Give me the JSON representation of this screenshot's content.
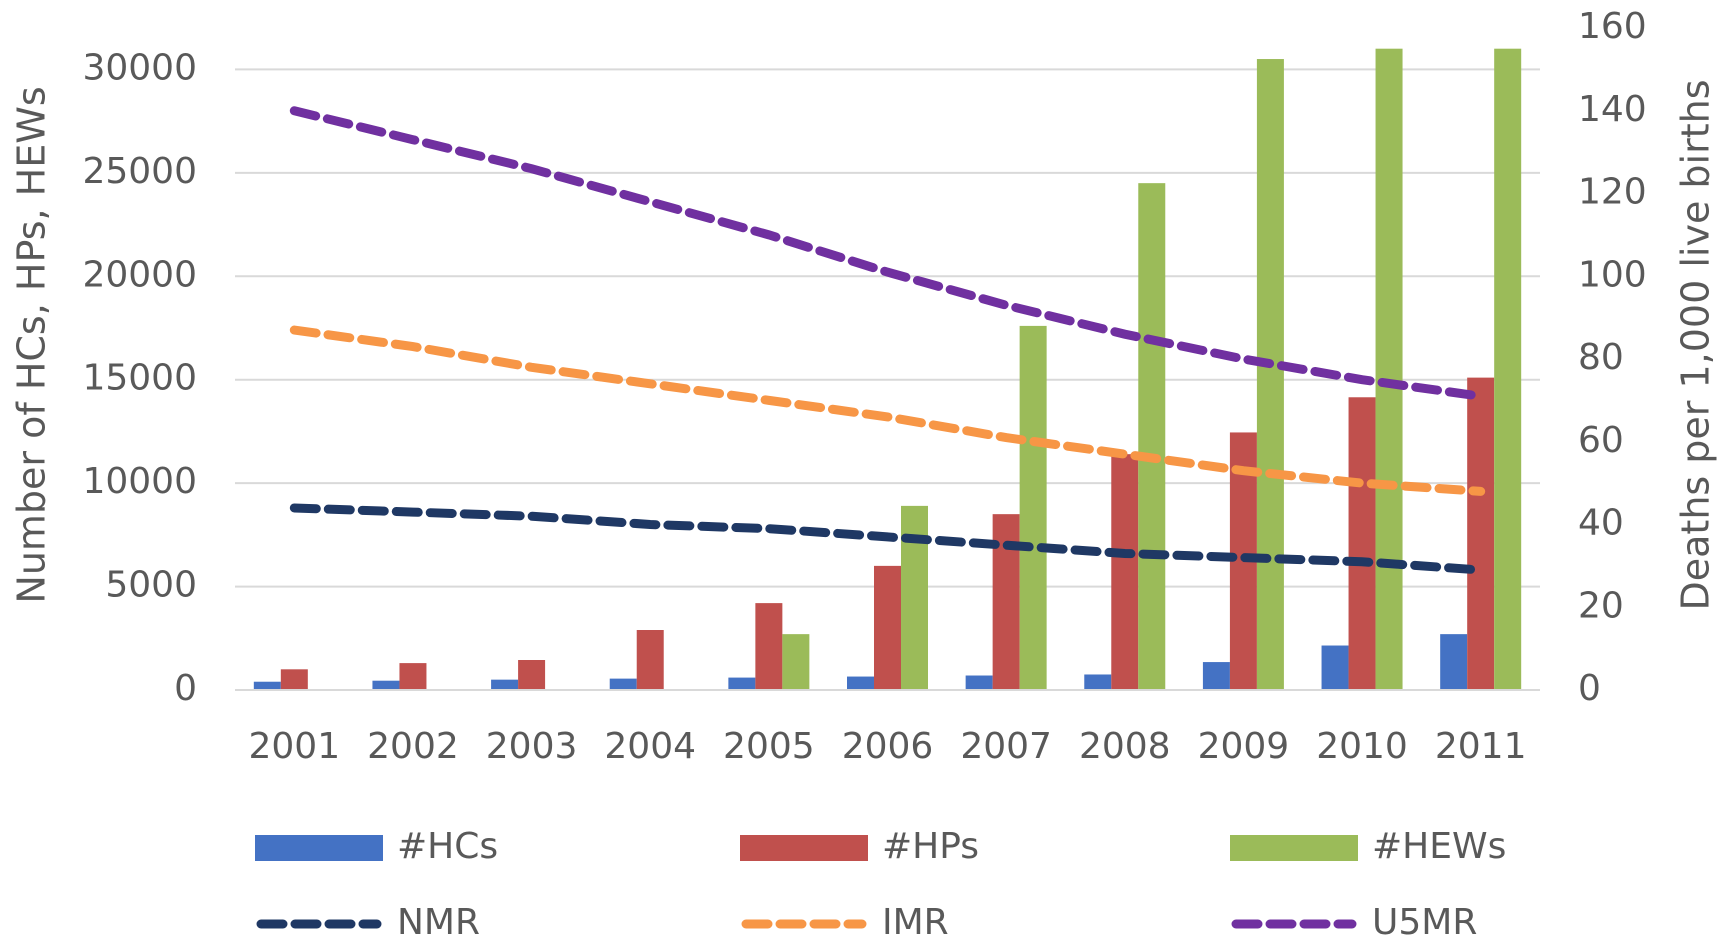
{
  "chart_data": {
    "type": "bar",
    "categories": [
      "2001",
      "2002",
      "2003",
      "2004",
      "2005",
      "2006",
      "2007",
      "2008",
      "2009",
      "2010",
      "2011"
    ],
    "ylabel": "Number of HCs, HPs, HEWs",
    "y2label": "Deaths per 1,000 live births",
    "ylim": [
      0,
      32000
    ],
    "yticks": [
      0,
      5000,
      10000,
      15000,
      20000,
      25000,
      30000
    ],
    "y2lim": [
      0,
      160
    ],
    "y2ticks": [
      0,
      20,
      40,
      60,
      80,
      100,
      120,
      140,
      160
    ],
    "grid": true,
    "series": [
      {
        "name": "#HCs",
        "type": "bar",
        "color": "#4472c4",
        "values": [
          400,
          450,
          500,
          550,
          600,
          650,
          700,
          750,
          1350,
          2150,
          2700
        ]
      },
      {
        "name": "#HPs",
        "type": "bar",
        "color": "#c0504d",
        "values": [
          1000,
          1300,
          1450,
          2900,
          4200,
          6000,
          8500,
          11400,
          12450,
          14150,
          15100
        ]
      },
      {
        "name": "#HEWs",
        "type": "bar",
        "color": "#9bbb59",
        "values": [
          null,
          null,
          null,
          null,
          2700,
          8900,
          17600,
          24500,
          30500,
          31000,
          31000
        ]
      },
      {
        "name": "NMR",
        "type": "line",
        "axis": "y2",
        "color": "#1f3864",
        "values": [
          44,
          43,
          42,
          40,
          39,
          37,
          35,
          33,
          32,
          31,
          29
        ]
      },
      {
        "name": "IMR",
        "type": "line",
        "axis": "y2",
        "color": "#f79646",
        "values": [
          87,
          83,
          78,
          74,
          70,
          66,
          61,
          57,
          53,
          50,
          48
        ]
      },
      {
        "name": "U5MR",
        "type": "line",
        "axis": "y2",
        "color": "#7030a0",
        "values": [
          140,
          133,
          126,
          118,
          110,
          101,
          93,
          86,
          80,
          75,
          71
        ]
      }
    ]
  }
}
